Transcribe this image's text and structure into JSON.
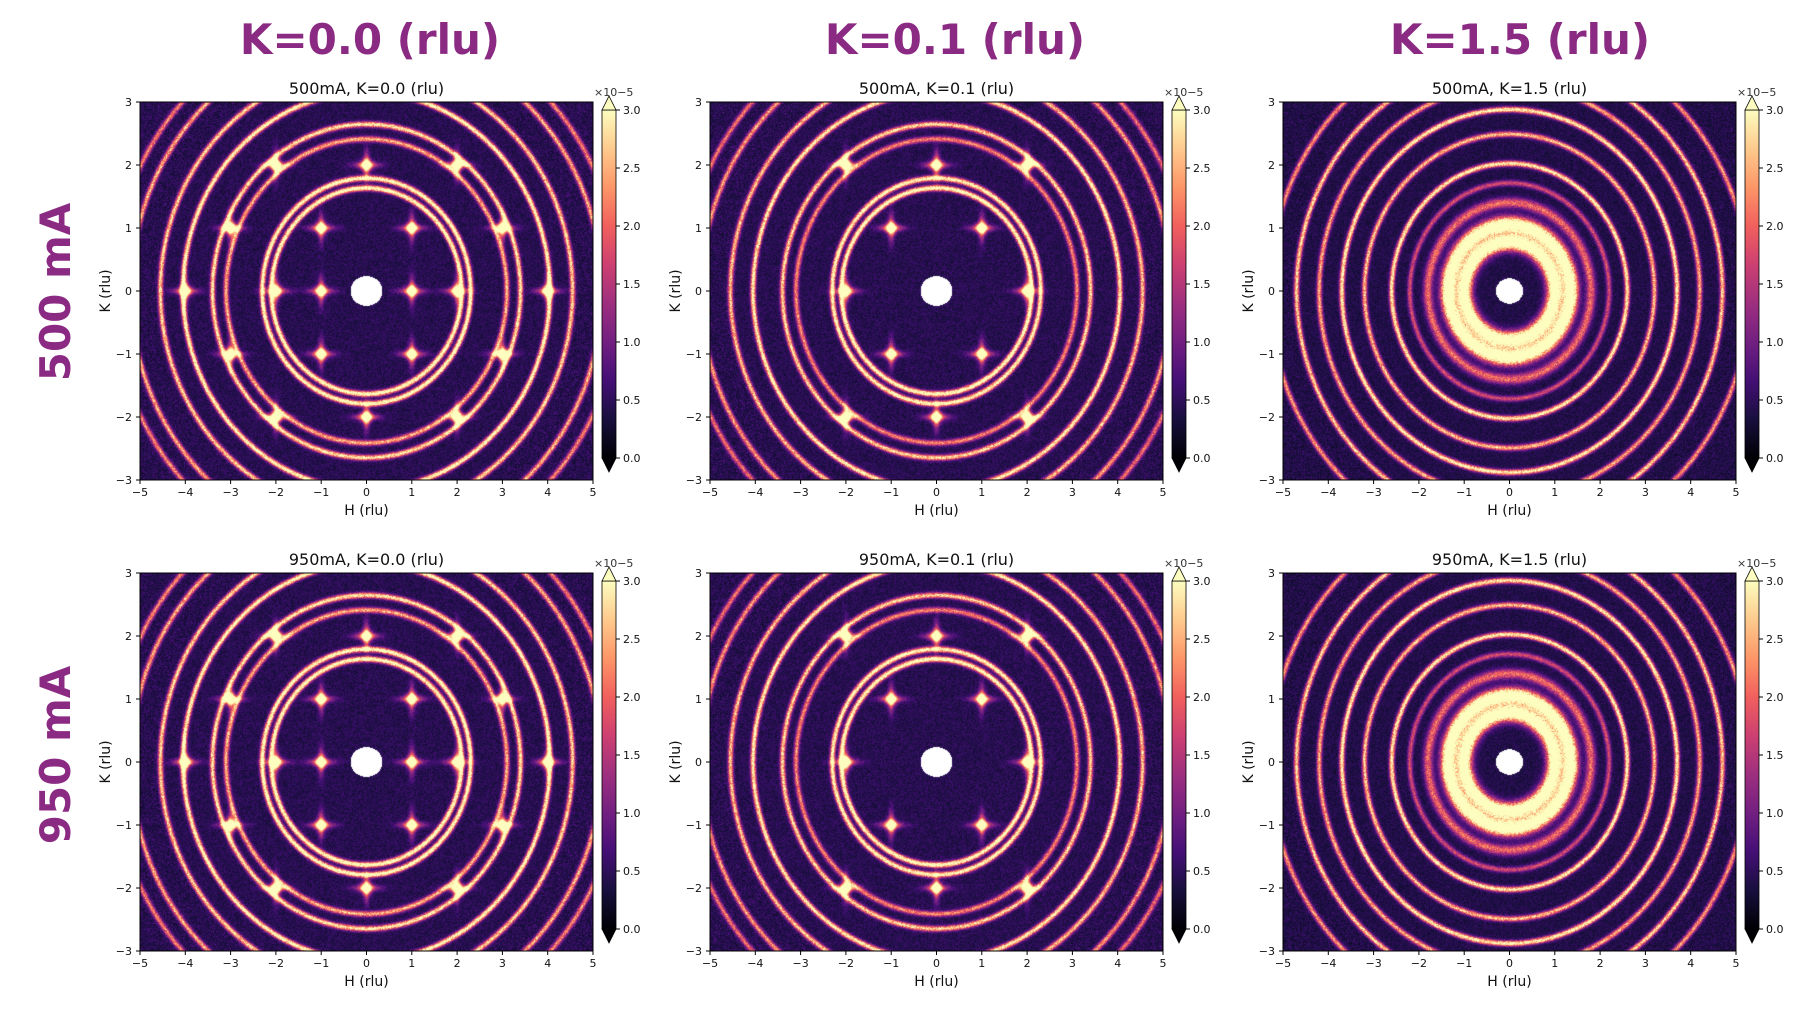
{
  "column_headers": [
    "K=0.0 (rlu)",
    "K=0.1 (rlu)",
    "K=1.5 (rlu)"
  ],
  "row_headers": [
    "500 mA",
    "950 mA"
  ],
  "colors": {
    "header_purple": "#8b2a83",
    "colormap": [
      "#000004",
      "#180f3d",
      "#440f76",
      "#721f81",
      "#9e2f7f",
      "#cd4071",
      "#f1605d",
      "#fd9668",
      "#feca8d",
      "#fcfdbf"
    ]
  },
  "chart_data": [
    {
      "type": "heatmap",
      "title": "500mA, K=0.0 (rlu)",
      "xlabel": "H (rlu)",
      "ylabel": "K (rlu)",
      "xlim": [
        -5,
        5
      ],
      "ylim": [
        -3,
        3
      ],
      "x_ticks": [
        -5,
        -4,
        -3,
        -2,
        -1,
        0,
        1,
        2,
        3,
        4,
        5
      ],
      "y_ticks": [
        -3,
        -2,
        -1,
        0,
        1,
        2,
        3
      ],
      "colorbar": {
        "range": [
          0.0,
          3.0
        ],
        "ticks": [
          "0.0",
          "0.5",
          "1.0",
          "1.5",
          "2.0",
          "2.5",
          "3.0"
        ],
        "exponent": "×10−5",
        "extend": "both"
      },
      "rings": [
        {
          "r": 2.1,
          "intensity": 1.0
        },
        {
          "r": 2.3,
          "intensity": 1.0
        },
        {
          "r": 3.1,
          "intensity": 0.7
        },
        {
          "r": 3.4,
          "intensity": 0.85
        },
        {
          "r": 4.05,
          "intensity": 0.95
        },
        {
          "r": 4.55,
          "intensity": 0.8
        },
        {
          "r": 5.2,
          "intensity": 0.7
        },
        {
          "r": 5.6,
          "intensity": 0.6
        }
      ],
      "spots": [
        [
          2,
          0
        ],
        [
          -2,
          0
        ],
        [
          0,
          2
        ],
        [
          0,
          -2
        ],
        [
          1,
          1
        ],
        [
          -1,
          1
        ],
        [
          1,
          -1
        ],
        [
          -1,
          -1
        ],
        [
          2,
          2
        ],
        [
          -2,
          2
        ],
        [
          2,
          -2
        ],
        [
          -2,
          -2
        ],
        [
          3,
          1
        ],
        [
          -3,
          1
        ],
        [
          3,
          -1
        ],
        [
          -3,
          -1
        ],
        [
          4,
          0
        ],
        [
          -4,
          0
        ],
        [
          1,
          0
        ],
        [
          -1,
          0
        ]
      ],
      "background": 0.45,
      "core_radius": 0.35
    },
    {
      "type": "heatmap",
      "title": "500mA, K=0.1 (rlu)",
      "xlabel": "H (rlu)",
      "ylabel": "K (rlu)",
      "xlim": [
        -5,
        5
      ],
      "ylim": [
        -3,
        3
      ],
      "x_ticks": [
        -5,
        -4,
        -3,
        -2,
        -1,
        0,
        1,
        2,
        3,
        4,
        5
      ],
      "y_ticks": [
        -3,
        -2,
        -1,
        0,
        1,
        2,
        3
      ],
      "colorbar": {
        "range": [
          0.0,
          3.0
        ],
        "ticks": [
          "0.0",
          "0.5",
          "1.0",
          "1.5",
          "2.0",
          "2.5",
          "3.0"
        ],
        "exponent": "×10−5",
        "extend": "both"
      },
      "rings": [
        {
          "r": 2.1,
          "intensity": 1.0
        },
        {
          "r": 2.3,
          "intensity": 0.95
        },
        {
          "r": 3.1,
          "intensity": 0.6
        },
        {
          "r": 3.4,
          "intensity": 0.8
        },
        {
          "r": 4.05,
          "intensity": 0.9
        },
        {
          "r": 4.55,
          "intensity": 0.75
        },
        {
          "r": 5.2,
          "intensity": 0.65
        },
        {
          "r": 5.6,
          "intensity": 0.55
        }
      ],
      "spots": [
        [
          2,
          0
        ],
        [
          -2,
          0
        ],
        [
          0,
          2
        ],
        [
          0,
          -2
        ],
        [
          1,
          1
        ],
        [
          -1,
          1
        ],
        [
          1,
          -1
        ],
        [
          -1,
          -1
        ],
        [
          2,
          2
        ],
        [
          -2,
          2
        ],
        [
          2,
          -2
        ],
        [
          -2,
          -2
        ]
      ],
      "background": 0.45,
      "core_radius": 0.35
    },
    {
      "type": "heatmap",
      "title": "500mA, K=1.5 (rlu)",
      "xlabel": "H (rlu)",
      "ylabel": "K (rlu)",
      "xlim": [
        -5,
        5
      ],
      "ylim": [
        -3,
        3
      ],
      "x_ticks": [
        -5,
        -4,
        -3,
        -2,
        -1,
        0,
        1,
        2,
        3,
        4,
        5
      ],
      "y_ticks": [
        -3,
        -2,
        -1,
        0,
        1,
        2,
        3
      ],
      "colorbar": {
        "range": [
          0.0,
          3.0
        ],
        "ticks": [
          "0.0",
          "0.5",
          "1.0",
          "1.5",
          "2.0",
          "2.5",
          "3.0"
        ],
        "exponent": "×10−5",
        "extend": "both"
      },
      "rings": [
        {
          "r": 1.0,
          "intensity": 1.3,
          "width": 0.16
        },
        {
          "r": 1.35,
          "intensity": 1.3,
          "width": 0.16
        },
        {
          "r": 1.8,
          "intensity": 0.55,
          "width": 0.1
        },
        {
          "r": 2.2,
          "intensity": 0.45
        },
        {
          "r": 2.6,
          "intensity": 0.9
        },
        {
          "r": 3.2,
          "intensity": 0.75
        },
        {
          "r": 3.7,
          "intensity": 0.9
        },
        {
          "r": 4.2,
          "intensity": 0.7
        },
        {
          "r": 4.7,
          "intensity": 0.8
        },
        {
          "r": 5.3,
          "intensity": 0.65
        }
      ],
      "spots": [],
      "background": 0.4,
      "core_radius": 0.3
    },
    {
      "type": "heatmap",
      "title": "950mA, K=0.0 (rlu)",
      "xlabel": "H (rlu)",
      "ylabel": "K (rlu)",
      "xlim": [
        -5,
        5
      ],
      "ylim": [
        -3,
        3
      ],
      "x_ticks": [
        -5,
        -4,
        -3,
        -2,
        -1,
        0,
        1,
        2,
        3,
        4,
        5
      ],
      "y_ticks": [
        -3,
        -2,
        -1,
        0,
        1,
        2,
        3
      ],
      "colorbar": {
        "range": [
          0.0,
          3.0
        ],
        "ticks": [
          "0.0",
          "0.5",
          "1.0",
          "1.5",
          "2.0",
          "2.5",
          "3.0"
        ],
        "exponent": "×10−5",
        "extend": "both"
      },
      "rings": [
        {
          "r": 2.1,
          "intensity": 1.0
        },
        {
          "r": 2.3,
          "intensity": 1.0
        },
        {
          "r": 3.1,
          "intensity": 0.7
        },
        {
          "r": 3.4,
          "intensity": 0.85
        },
        {
          "r": 4.05,
          "intensity": 0.95
        },
        {
          "r": 4.55,
          "intensity": 0.8
        },
        {
          "r": 5.2,
          "intensity": 0.7
        },
        {
          "r": 5.6,
          "intensity": 0.6
        }
      ],
      "spots": [
        [
          2,
          0
        ],
        [
          -2,
          0
        ],
        [
          0,
          2
        ],
        [
          0,
          -2
        ],
        [
          1,
          1
        ],
        [
          -1,
          1
        ],
        [
          1,
          -1
        ],
        [
          -1,
          -1
        ],
        [
          2,
          2
        ],
        [
          -2,
          2
        ],
        [
          2,
          -2
        ],
        [
          -2,
          -2
        ],
        [
          3,
          1
        ],
        [
          -3,
          1
        ],
        [
          3,
          -1
        ],
        [
          -3,
          -1
        ],
        [
          4,
          0
        ],
        [
          -4,
          0
        ],
        [
          1,
          0
        ],
        [
          -1,
          0
        ]
      ],
      "background": 0.45,
      "core_radius": 0.35
    },
    {
      "type": "heatmap",
      "title": "950mA, K=0.1 (rlu)",
      "xlabel": "H (rlu)",
      "ylabel": "K (rlu)",
      "xlim": [
        -5,
        5
      ],
      "ylim": [
        -3,
        3
      ],
      "x_ticks": [
        -5,
        -4,
        -3,
        -2,
        -1,
        0,
        1,
        2,
        3,
        4,
        5
      ],
      "y_ticks": [
        -3,
        -2,
        -1,
        0,
        1,
        2,
        3
      ],
      "colorbar": {
        "range": [
          0.0,
          3.0
        ],
        "ticks": [
          "0.0",
          "0.5",
          "1.0",
          "1.5",
          "2.0",
          "2.5",
          "3.0"
        ],
        "exponent": "×10−5",
        "extend": "both"
      },
      "rings": [
        {
          "r": 2.1,
          "intensity": 1.0
        },
        {
          "r": 2.3,
          "intensity": 0.95
        },
        {
          "r": 3.1,
          "intensity": 0.6
        },
        {
          "r": 3.4,
          "intensity": 0.8
        },
        {
          "r": 4.05,
          "intensity": 0.9
        },
        {
          "r": 4.55,
          "intensity": 0.75
        },
        {
          "r": 5.2,
          "intensity": 0.65
        },
        {
          "r": 5.6,
          "intensity": 0.55
        }
      ],
      "spots": [
        [
          2,
          0
        ],
        [
          -2,
          0
        ],
        [
          0,
          2
        ],
        [
          0,
          -2
        ],
        [
          1,
          1
        ],
        [
          -1,
          1
        ],
        [
          1,
          -1
        ],
        [
          -1,
          -1
        ],
        [
          2,
          2
        ],
        [
          -2,
          2
        ],
        [
          2,
          -2
        ],
        [
          -2,
          -2
        ]
      ],
      "background": 0.45,
      "core_radius": 0.35
    },
    {
      "type": "heatmap",
      "title": "950mA, K=1.5 (rlu)",
      "xlabel": "H (rlu)",
      "ylabel": "K (rlu)",
      "xlim": [
        -5,
        5
      ],
      "ylim": [
        -3,
        3
      ],
      "x_ticks": [
        -5,
        -4,
        -3,
        -2,
        -1,
        0,
        1,
        2,
        3,
        4,
        5
      ],
      "y_ticks": [
        -3,
        -2,
        -1,
        0,
        1,
        2,
        3
      ],
      "colorbar": {
        "range": [
          0.0,
          3.0
        ],
        "ticks": [
          "0.0",
          "0.5",
          "1.0",
          "1.5",
          "2.0",
          "2.5",
          "3.0"
        ],
        "exponent": "×10−5",
        "extend": "both"
      },
      "rings": [
        {
          "r": 1.0,
          "intensity": 1.3,
          "width": 0.16
        },
        {
          "r": 1.35,
          "intensity": 1.3,
          "width": 0.16
        },
        {
          "r": 1.8,
          "intensity": 0.55,
          "width": 0.1
        },
        {
          "r": 2.2,
          "intensity": 0.45
        },
        {
          "r": 2.6,
          "intensity": 0.9
        },
        {
          "r": 3.2,
          "intensity": 0.75
        },
        {
          "r": 3.7,
          "intensity": 0.9
        },
        {
          "r": 4.2,
          "intensity": 0.7
        },
        {
          "r": 4.7,
          "intensity": 0.8
        },
        {
          "r": 5.3,
          "intensity": 0.65
        }
      ],
      "spots": [],
      "background": 0.4,
      "core_radius": 0.3
    }
  ]
}
